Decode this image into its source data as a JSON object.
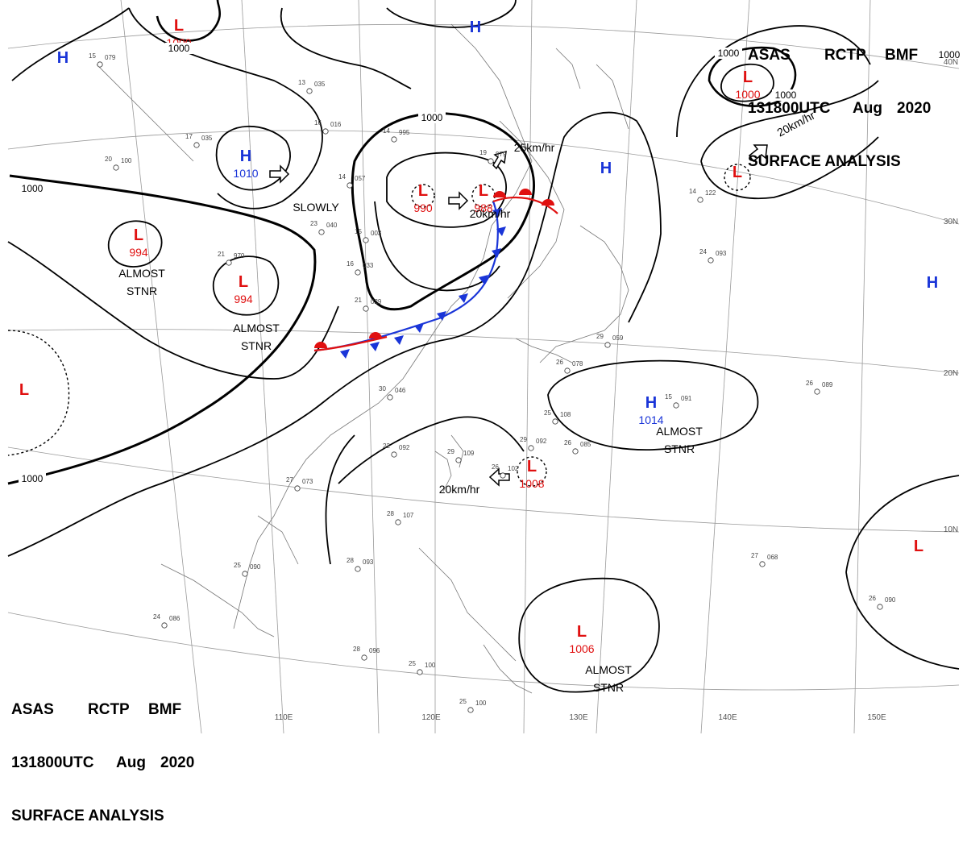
{
  "chart_info": {
    "header_top": {
      "line1": [
        "ASAS",
        "RCTP",
        "BMF"
      ],
      "line2": [
        "131800UTC",
        "Aug",
        "2020"
      ],
      "line3": "SURFACE ANALYSIS"
    },
    "header_bottom": {
      "line1": [
        "ASAS",
        "RCTP",
        "BMF"
      ],
      "line2": [
        "131800UTC",
        "Aug",
        "2020"
      ],
      "line3": "SURFACE ANALYSIS"
    }
  },
  "lon_labels": [
    "110E",
    "120E",
    "130E",
    "140E",
    "150E"
  ],
  "lat_labels": [
    "40N",
    "30N",
    "20N",
    "10N"
  ],
  "colors": {
    "high": "#1a35d8",
    "low": "#e01010",
    "cold_front": "#1a35d8",
    "warm_front": "#e01010",
    "isobar": "#000000"
  },
  "isobar_labels": [
    "1000",
    "1000",
    "1000",
    "1000",
    "1000",
    "1000",
    "1000"
  ],
  "pressure_centers": [
    {
      "type": "H",
      "value": ""
    },
    {
      "type": "L",
      "value": "1000"
    },
    {
      "type": "H",
      "value": ""
    },
    {
      "type": "H",
      "value": "1010"
    },
    {
      "type": "L",
      "value": "994"
    },
    {
      "type": "L",
      "value": "994"
    },
    {
      "type": "L",
      "value": "990"
    },
    {
      "type": "L",
      "value": "988"
    },
    {
      "type": "L",
      "value": ""
    },
    {
      "type": "H",
      "value": ""
    },
    {
      "type": "L",
      "value": ""
    },
    {
      "type": "L",
      "value": "1000"
    },
    {
      "type": "H",
      "value": ""
    },
    {
      "type": "H",
      "value": "1014"
    },
    {
      "type": "L",
      "value": "1008"
    },
    {
      "type": "L",
      "value": ""
    },
    {
      "type": "L",
      "value": "1006"
    }
  ],
  "annotations": [
    {
      "text": "SLOWLY"
    },
    {
      "text": "ALMOST"
    },
    {
      "text": "STNR"
    },
    {
      "text": "ALMOST"
    },
    {
      "text": "STNR"
    },
    {
      "text": "ALMOST"
    },
    {
      "text": "STNR"
    },
    {
      "text": "ALMOST"
    },
    {
      "text": "STNR"
    },
    {
      "text": "25km/hr"
    },
    {
      "text": "20km/hr"
    },
    {
      "text": "20km/hr"
    },
    {
      "text": "20km/hr"
    }
  ],
  "station_temps": [
    "15",
    "13",
    "16",
    "17",
    "20",
    "14",
    "19",
    "15",
    "16",
    "21",
    "21",
    "23",
    "14",
    "30",
    "22",
    "29",
    "27",
    "28",
    "25",
    "28",
    "25",
    "25",
    "24",
    "28",
    "26",
    "25",
    "26",
    "29",
    "26",
    "29",
    "14",
    "24",
    "15",
    "26",
    "27",
    "26"
  ],
  "station_pressures": [
    "079",
    "035",
    "016",
    "035",
    "100",
    "995",
    "979",
    "003",
    "033",
    "970",
    "029",
    "040",
    "057",
    "046",
    "092",
    "109",
    "073",
    "107",
    "090",
    "096",
    "100",
    "100",
    "086",
    "093",
    "102",
    "108",
    "085",
    "092",
    "078",
    "059",
    "122",
    "093",
    "091",
    "089",
    "068",
    "090"
  ]
}
